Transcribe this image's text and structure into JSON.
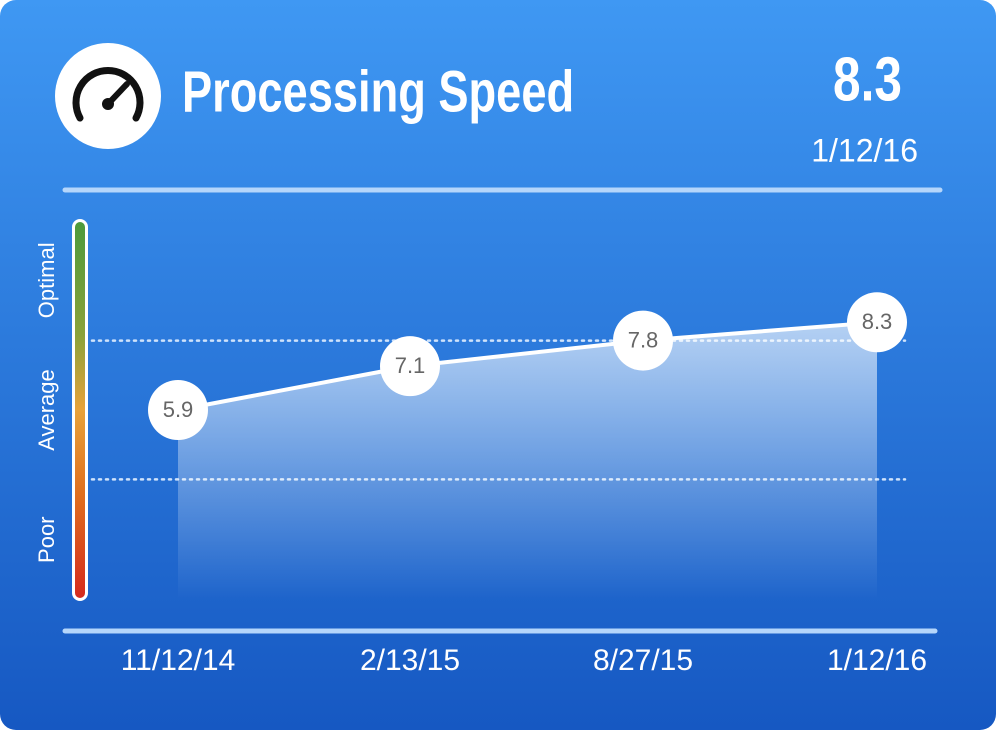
{
  "chart_data": {
    "type": "line",
    "title": "Processing Speed",
    "categories": [
      "11/12/14",
      "2/13/15",
      "8/27/15",
      "1/12/16"
    ],
    "values": [
      5.9,
      7.1,
      7.8,
      8.3
    ],
    "color": "#ffffff",
    "ylim": [
      0.7,
      11.1
    ],
    "thresholds": [
      4,
      7.8
    ],
    "zones": [
      "Poor",
      "Average",
      "Optimal"
    ]
  }
}
